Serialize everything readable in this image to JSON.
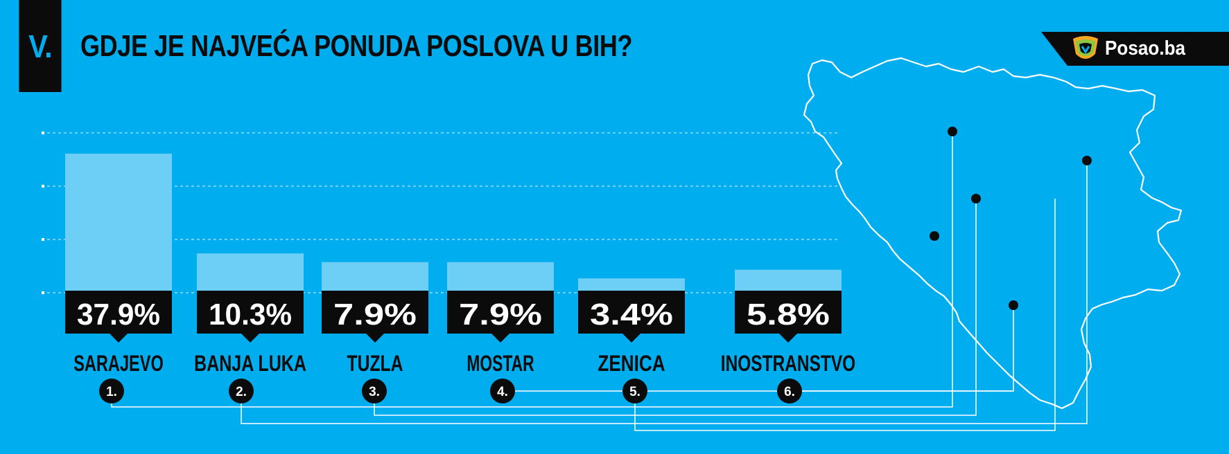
{
  "header": {
    "section_number": "V.",
    "title": "GDJE JE NAJVEĆA PONUDA POSLOVA U BIH?"
  },
  "logo": {
    "text": "Posao.ba"
  },
  "colors": {
    "background": "#00adef",
    "bar": "#6dcff6",
    "label_box": "#0b0b0b",
    "text": "#0b0b0b",
    "map_line": "#ffffff"
  },
  "chart_data": {
    "type": "bar",
    "categories": [
      "SARAJEVO",
      "BANJA LUKA",
      "TUZLA",
      "MOSTAR",
      "ZENICA",
      "INOSTRANSTVO"
    ],
    "values": [
      37.9,
      10.3,
      7.9,
      7.9,
      3.4,
      5.8
    ],
    "value_labels": [
      "37.9%",
      "10.3%",
      "7.9%",
      "7.9%",
      "3.4%",
      "5.8%"
    ],
    "ranks": [
      "1.",
      "2.",
      "3.",
      "4.",
      "5.",
      "6."
    ],
    "grid": true
  }
}
